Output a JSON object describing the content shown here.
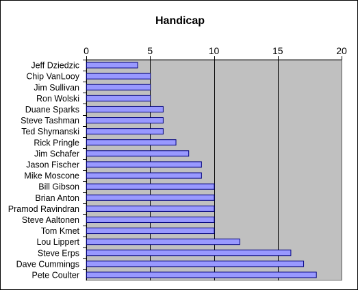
{
  "chart_data": {
    "type": "bar",
    "orientation": "horizontal",
    "title": "Handicap",
    "xlabel": "",
    "ylabel": "",
    "xlim": [
      0,
      20
    ],
    "x_ticks": [
      0,
      5,
      10,
      15,
      20
    ],
    "x_axis_position": "top",
    "grid": true,
    "legend": "none",
    "categories": [
      "Jeff Dziedzic",
      "Chip VanLooy",
      "Jim Sullivan",
      "Ron Wolski",
      "Duane Sparks",
      "Steve Tashman",
      "Ted Shymanski",
      "Rick Pringle",
      "Jim Schafer",
      "Jason Fischer",
      "Mike Moscone",
      "Bill Gibson",
      "Brian Anton",
      "Pramod Ravindran",
      "Steve Aaltonen",
      "Tom Kmet",
      "Lou Lippert",
      "Steve Erps",
      "Dave Cummings",
      "Pete Coulter"
    ],
    "values": [
      4,
      5,
      5,
      5,
      6,
      6,
      6,
      7,
      8,
      9,
      9,
      10,
      10,
      10,
      10,
      10,
      12,
      16,
      17,
      18
    ],
    "colors": {
      "bar_fill": "#9999ff",
      "bar_stroke": "#000080",
      "plot_background": "#c0c0c0",
      "gridline": "#000000"
    }
  }
}
